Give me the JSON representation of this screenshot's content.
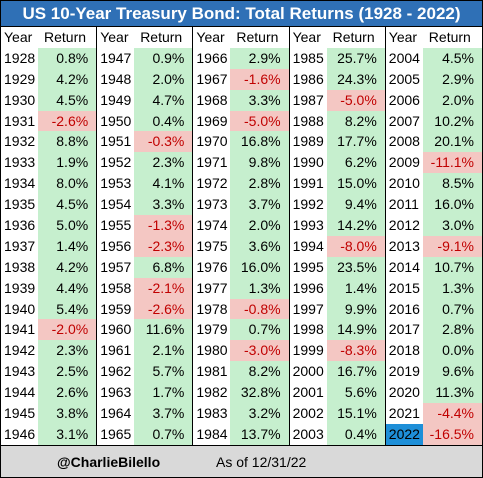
{
  "title": "US 10-Year Treasury Bond: Total Returns (1928 - 2022)",
  "headers": {
    "year": "Year",
    "return": "Return"
  },
  "footer": {
    "handle": "@CharlieBilello",
    "as_of": "As of 12/31/22"
  },
  "colors": {
    "title_bg": "#2f70b6",
    "positive_bg": "#c6efce",
    "negative_bg": "#f4c7c3",
    "negative_text": "#c00000",
    "highlight": "#1e8fd8",
    "footer_bg": "#d9d9d9"
  },
  "chart_data": {
    "type": "table",
    "columns": [
      "Year",
      "Return"
    ],
    "highlight_year": "2022",
    "blocks": [
      {
        "rows": [
          {
            "year": "1928",
            "ret": "0.8%"
          },
          {
            "year": "1929",
            "ret": "4.2%"
          },
          {
            "year": "1930",
            "ret": "4.5%"
          },
          {
            "year": "1931",
            "ret": "-2.6%"
          },
          {
            "year": "1932",
            "ret": "8.8%"
          },
          {
            "year": "1933",
            "ret": "1.9%"
          },
          {
            "year": "1934",
            "ret": "8.0%"
          },
          {
            "year": "1935",
            "ret": "4.5%"
          },
          {
            "year": "1936",
            "ret": "5.0%"
          },
          {
            "year": "1937",
            "ret": "1.4%"
          },
          {
            "year": "1938",
            "ret": "4.2%"
          },
          {
            "year": "1939",
            "ret": "4.4%"
          },
          {
            "year": "1940",
            "ret": "5.4%"
          },
          {
            "year": "1941",
            "ret": "-2.0%"
          },
          {
            "year": "1942",
            "ret": "2.3%"
          },
          {
            "year": "1943",
            "ret": "2.5%"
          },
          {
            "year": "1944",
            "ret": "2.6%"
          },
          {
            "year": "1945",
            "ret": "3.8%"
          },
          {
            "year": "1946",
            "ret": "3.1%"
          }
        ]
      },
      {
        "rows": [
          {
            "year": "1947",
            "ret": "0.9%"
          },
          {
            "year": "1948",
            "ret": "2.0%"
          },
          {
            "year": "1949",
            "ret": "4.7%"
          },
          {
            "year": "1950",
            "ret": "0.4%"
          },
          {
            "year": "1951",
            "ret": "-0.3%"
          },
          {
            "year": "1952",
            "ret": "2.3%"
          },
          {
            "year": "1953",
            "ret": "4.1%"
          },
          {
            "year": "1954",
            "ret": "3.3%"
          },
          {
            "year": "1955",
            "ret": "-1.3%"
          },
          {
            "year": "1956",
            "ret": "-2.3%"
          },
          {
            "year": "1957",
            "ret": "6.8%"
          },
          {
            "year": "1958",
            "ret": "-2.1%"
          },
          {
            "year": "1959",
            "ret": "-2.6%"
          },
          {
            "year": "1960",
            "ret": "11.6%"
          },
          {
            "year": "1961",
            "ret": "2.1%"
          },
          {
            "year": "1962",
            "ret": "5.7%"
          },
          {
            "year": "1963",
            "ret": "1.7%"
          },
          {
            "year": "1964",
            "ret": "3.7%"
          },
          {
            "year": "1965",
            "ret": "0.7%"
          }
        ]
      },
      {
        "rows": [
          {
            "year": "1966",
            "ret": "2.9%"
          },
          {
            "year": "1967",
            "ret": "-1.6%"
          },
          {
            "year": "1968",
            "ret": "3.3%"
          },
          {
            "year": "1969",
            "ret": "-5.0%"
          },
          {
            "year": "1970",
            "ret": "16.8%"
          },
          {
            "year": "1971",
            "ret": "9.8%"
          },
          {
            "year": "1972",
            "ret": "2.8%"
          },
          {
            "year": "1973",
            "ret": "3.7%"
          },
          {
            "year": "1974",
            "ret": "2.0%"
          },
          {
            "year": "1975",
            "ret": "3.6%"
          },
          {
            "year": "1976",
            "ret": "16.0%"
          },
          {
            "year": "1977",
            "ret": "1.3%"
          },
          {
            "year": "1978",
            "ret": "-0.8%"
          },
          {
            "year": "1979",
            "ret": "0.7%"
          },
          {
            "year": "1980",
            "ret": "-3.0%"
          },
          {
            "year": "1981",
            "ret": "8.2%"
          },
          {
            "year": "1982",
            "ret": "32.8%"
          },
          {
            "year": "1983",
            "ret": "3.2%"
          },
          {
            "year": "1984",
            "ret": "13.7%"
          }
        ]
      },
      {
        "rows": [
          {
            "year": "1985",
            "ret": "25.7%"
          },
          {
            "year": "1986",
            "ret": "24.3%"
          },
          {
            "year": "1987",
            "ret": "-5.0%"
          },
          {
            "year": "1988",
            "ret": "8.2%"
          },
          {
            "year": "1989",
            "ret": "17.7%"
          },
          {
            "year": "1990",
            "ret": "6.2%"
          },
          {
            "year": "1991",
            "ret": "15.0%"
          },
          {
            "year": "1992",
            "ret": "9.4%"
          },
          {
            "year": "1993",
            "ret": "14.2%"
          },
          {
            "year": "1994",
            "ret": "-8.0%"
          },
          {
            "year": "1995",
            "ret": "23.5%"
          },
          {
            "year": "1996",
            "ret": "1.4%"
          },
          {
            "year": "1997",
            "ret": "9.9%"
          },
          {
            "year": "1998",
            "ret": "14.9%"
          },
          {
            "year": "1999",
            "ret": "-8.3%"
          },
          {
            "year": "2000",
            "ret": "16.7%"
          },
          {
            "year": "2001",
            "ret": "5.6%"
          },
          {
            "year": "2002",
            "ret": "15.1%"
          },
          {
            "year": "2003",
            "ret": "0.4%"
          }
        ]
      },
      {
        "rows": [
          {
            "year": "2004",
            "ret": "4.5%"
          },
          {
            "year": "2005",
            "ret": "2.9%"
          },
          {
            "year": "2006",
            "ret": "2.0%"
          },
          {
            "year": "2007",
            "ret": "10.2%"
          },
          {
            "year": "2008",
            "ret": "20.1%"
          },
          {
            "year": "2009",
            "ret": "-11.1%"
          },
          {
            "year": "2010",
            "ret": "8.5%"
          },
          {
            "year": "2011",
            "ret": "16.0%"
          },
          {
            "year": "2012",
            "ret": "3.0%"
          },
          {
            "year": "2013",
            "ret": "-9.1%"
          },
          {
            "year": "2014",
            "ret": "10.7%"
          },
          {
            "year": "2015",
            "ret": "1.3%"
          },
          {
            "year": "2016",
            "ret": "0.7%"
          },
          {
            "year": "2017",
            "ret": "2.8%"
          },
          {
            "year": "2018",
            "ret": "0.0%"
          },
          {
            "year": "2019",
            "ret": "9.6%"
          },
          {
            "year": "2020",
            "ret": "11.3%"
          },
          {
            "year": "2021",
            "ret": "-4.4%"
          },
          {
            "year": "2022",
            "ret": "-16.5%"
          }
        ]
      }
    ]
  }
}
